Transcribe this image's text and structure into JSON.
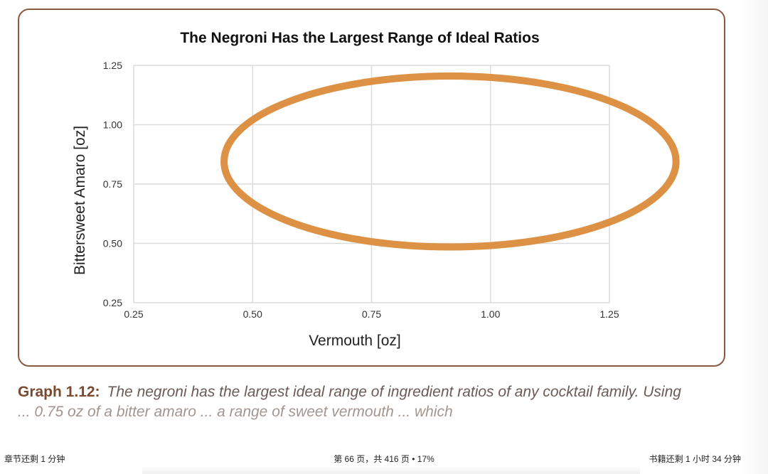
{
  "chart_data": {
    "type": "scatter",
    "title": "The Negroni Has the Largest Range of Ideal Ratios",
    "xlabel": "Vermouth [oz]",
    "ylabel": "Bittersweet Amaro [oz]",
    "xlim": [
      0.25,
      1.25
    ],
    "ylim": [
      0.25,
      1.25
    ],
    "x_ticks": [
      "0.25",
      "0.50",
      "0.75",
      "1.00",
      "1.25"
    ],
    "y_ticks": [
      "0.25",
      "0.50",
      "0.75",
      "1.00",
      "1.25"
    ],
    "grid": true,
    "legend": "none",
    "regions": [
      {
        "name": "Negroni ideal range",
        "shape": "ellipse",
        "center_x": 0.915,
        "center_y": 0.845,
        "radius_x": 0.475,
        "radius_y": 0.36,
        "color": "#dd9144"
      }
    ]
  },
  "caption": {
    "label": "Graph 1.12:",
    "text": "The negroni has the largest ideal range of ingredient ratios of any cocktail family. Using",
    "next_line_partial": "  ...  0.75 oz of a bitter amaro  ...  a range of sweet vermouth  ...  which"
  },
  "reader": {
    "chapter_remaining": "章节还剩 1 分钟",
    "page_position": "第 66 页，共 416 页 • 17%",
    "book_remaining": "书籍还剩 1 小时 34 分钟"
  },
  "colors": {
    "frame": "#8a5a3e",
    "ellipse": "#dd9144",
    "grid": "#dcdcdc",
    "caption_label": "#7a4a30"
  }
}
